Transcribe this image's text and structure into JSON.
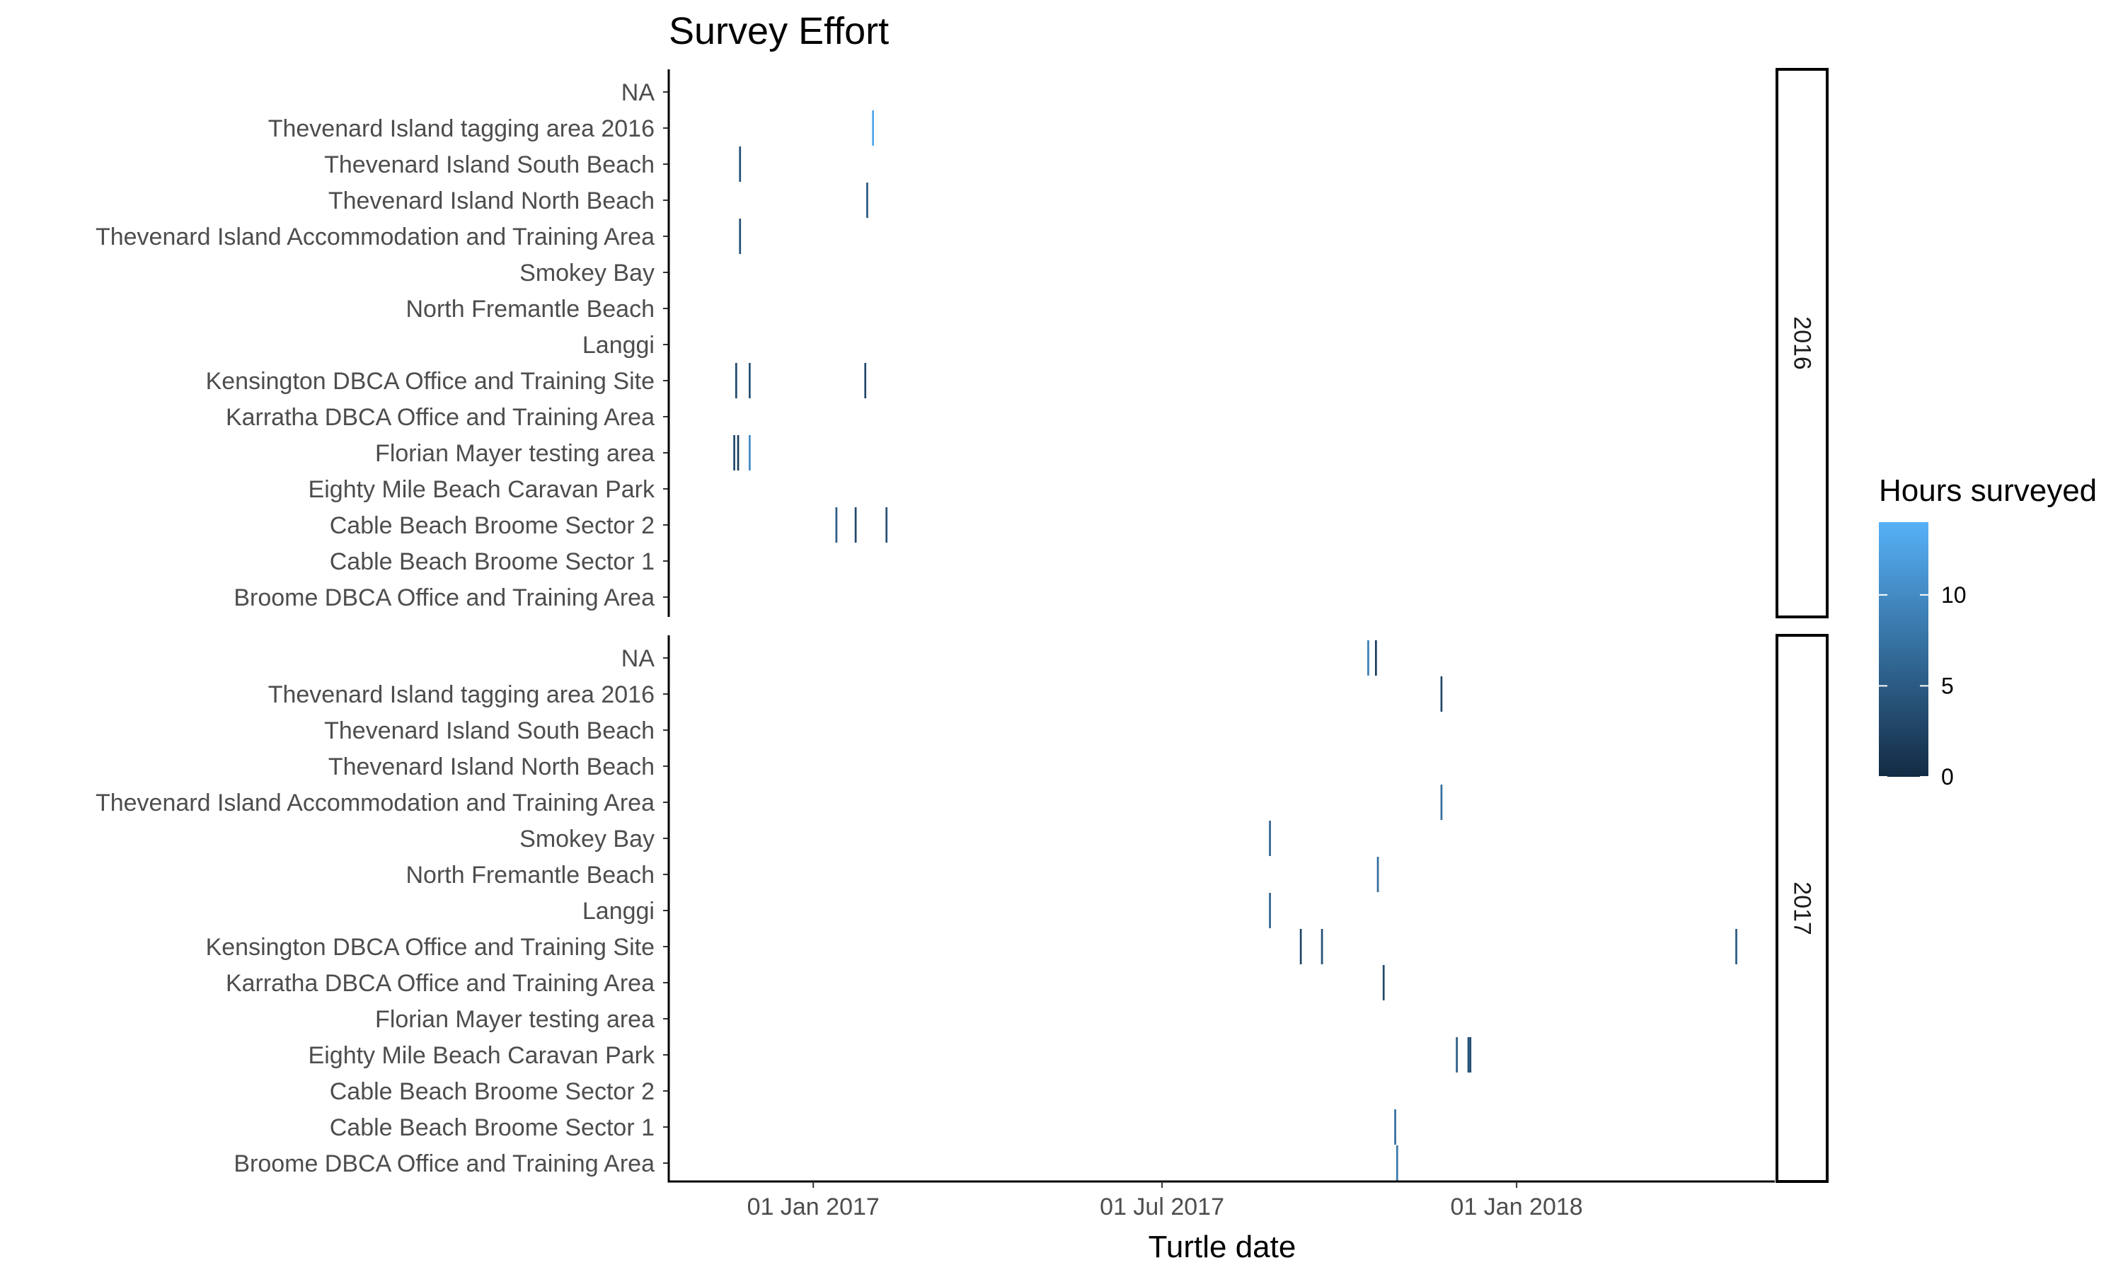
{
  "chart_data": {
    "type": "heatmap",
    "title": "Survey Effort",
    "xlabel": "Turtle date",
    "ylabel": "",
    "x_ticks": [
      "01 Jan 2017",
      "01 Jul 2017",
      "01 Jan 2018"
    ],
    "xlim": [
      "2016-10-18",
      "2018-05-15"
    ],
    "sites": [
      "NA",
      "Thevenard Island tagging area 2016",
      "Thevenard Island South Beach",
      "Thevenard Island North Beach",
      "Thevenard Island Accommodation and Training Area",
      "Smokey Bay",
      "North Fremantle Beach",
      "Langgi",
      "Kensington DBCA Office and Training Site",
      "Karratha DBCA Office and Training Area",
      "Florian Mayer testing area",
      "Eighty Mile Beach Caravan Park",
      "Cable Beach Broome Sector 2",
      "Cable Beach Broome Sector 1",
      "Broome DBCA Office and Training Area"
    ],
    "facets": [
      {
        "label": "2016",
        "surveys": [
          {
            "site": "Thevenard Island tagging area 2016",
            "date": "2017-02-01",
            "hours": 13
          },
          {
            "site": "Thevenard Island South Beach",
            "date": "2016-11-24",
            "hours": 4
          },
          {
            "site": "Thevenard Island North Beach",
            "date": "2017-01-29",
            "hours": 5
          },
          {
            "site": "Thevenard Island Accommodation and Training Area",
            "date": "2016-11-24",
            "hours": 4
          },
          {
            "site": "Kensington DBCA Office and Training Site",
            "date": "2016-11-22",
            "hours": 3
          },
          {
            "site": "Kensington DBCA Office and Training Site",
            "date": "2016-11-29",
            "hours": 4
          },
          {
            "site": "Kensington DBCA Office and Training Site",
            "date": "2017-01-28",
            "hours": 3
          },
          {
            "site": "Florian Mayer testing area",
            "date": "2016-11-21",
            "hours": 3
          },
          {
            "site": "Florian Mayer testing area",
            "date": "2016-11-23",
            "hours": 2
          },
          {
            "site": "Florian Mayer testing area",
            "date": "2016-11-29",
            "hours": 10
          },
          {
            "site": "Cable Beach Broome Sector 2",
            "date": "2017-01-13",
            "hours": 5
          },
          {
            "site": "Cable Beach Broome Sector 2",
            "date": "2017-01-23",
            "hours": 3
          },
          {
            "site": "Cable Beach Broome Sector 2",
            "date": "2017-02-08",
            "hours": 4
          }
        ]
      },
      {
        "label": "2017",
        "surveys": [
          {
            "site": "NA",
            "date": "2017-10-16",
            "hours": 9
          },
          {
            "site": "NA",
            "date": "2017-10-20",
            "hours": 2
          },
          {
            "site": "Thevenard Island tagging area 2016",
            "date": "2017-11-23",
            "hours": 3
          },
          {
            "site": "Thevenard Island Accommodation and Training Area",
            "date": "2017-11-23",
            "hours": 7
          },
          {
            "site": "Smokey Bay",
            "date": "2017-08-26",
            "hours": 6
          },
          {
            "site": "North Fremantle Beach",
            "date": "2017-10-21",
            "hours": 7
          },
          {
            "site": "Langgi",
            "date": "2017-08-26",
            "hours": 6
          },
          {
            "site": "Kensington DBCA Office and Training Site",
            "date": "2017-09-11",
            "hours": 3
          },
          {
            "site": "Kensington DBCA Office and Training Site",
            "date": "2017-09-22",
            "hours": 4
          },
          {
            "site": "Kensington DBCA Office and Training Site",
            "date": "2018-04-25",
            "hours": 5
          },
          {
            "site": "Karratha DBCA Office and Training Area",
            "date": "2017-10-24",
            "hours": 3
          },
          {
            "site": "Eighty Mile Beach Caravan Park",
            "date": "2017-12-01",
            "hours": 5
          },
          {
            "site": "Eighty Mile Beach Caravan Park",
            "date": "2017-12-07",
            "hours": 4
          },
          {
            "site": "Eighty Mile Beach Caravan Park",
            "date": "2017-12-08",
            "hours": 4
          },
          {
            "site": "Cable Beach Broome Sector 1",
            "date": "2017-10-30",
            "hours": 7
          },
          {
            "site": "Broome DBCA Office and Training Area",
            "date": "2017-10-31",
            "hours": 8
          }
        ]
      }
    ],
    "legend": {
      "title": "Hours surveyed",
      "ticks": [
        0,
        5,
        10
      ],
      "range": [
        0,
        14
      ],
      "low_color": "#132B43",
      "high_color": "#56B1F7",
      "placement": "right"
    },
    "grid": false
  }
}
